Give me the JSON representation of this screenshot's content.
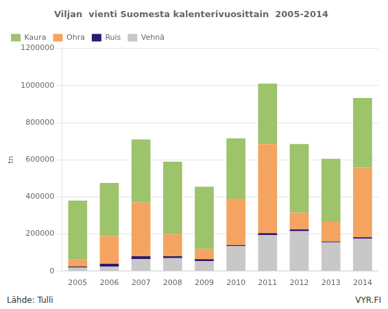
{
  "chart_data": {
    "type": "bar",
    "stacked": true,
    "title": "Viljan  vienti Suomesta kalenterivuosittain  2005-2014",
    "ylabel": "tn",
    "categories": [
      "2005",
      "2006",
      "2007",
      "2008",
      "2009",
      "2010",
      "2011",
      "2012",
      "2013",
      "2014"
    ],
    "series": [
      {
        "name": "Vehnä",
        "color": "#c8c8c8",
        "values": [
          20000,
          25000,
          65000,
          70000,
          55000,
          135000,
          195000,
          215000,
          155000,
          175000
        ]
      },
      {
        "name": "Ruis",
        "color": "#2e1a6e",
        "values": [
          5000,
          15000,
          15000,
          10000,
          10000,
          5000,
          10000,
          10000,
          5000,
          8000
        ]
      },
      {
        "name": "Ohra",
        "color": "#f4a460",
        "values": [
          40000,
          150000,
          290000,
          120000,
          55000,
          250000,
          480000,
          90000,
          105000,
          375000
        ]
      },
      {
        "name": "Kaura",
        "color": "#9dc36b",
        "values": [
          315000,
          285000,
          340000,
          390000,
          335000,
          325000,
          325000,
          370000,
          340000,
          375000
        ]
      }
    ],
    "ylim": [
      0,
      1200000
    ],
    "yticks": [
      0,
      200000,
      400000,
      600000,
      800000,
      1000000,
      1200000
    ],
    "grid": true,
    "legend": "upper left",
    "annotations": [
      "Lähde: Tulli",
      "VYR.FI"
    ]
  }
}
